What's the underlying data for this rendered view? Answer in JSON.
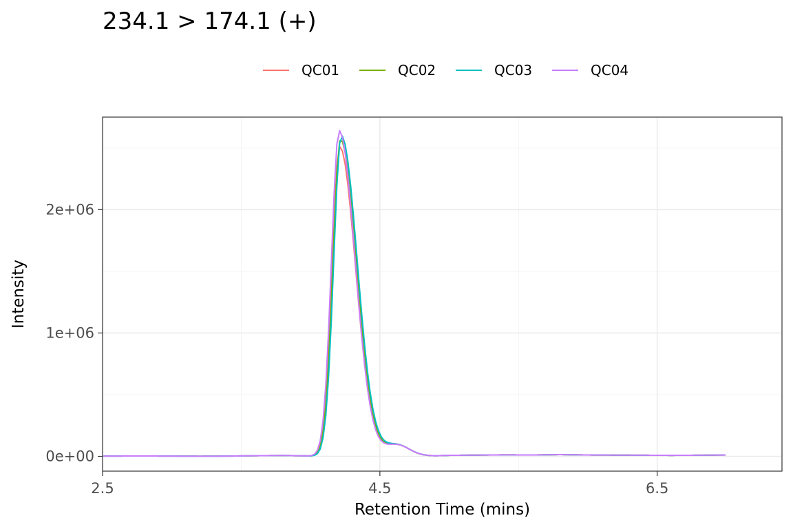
{
  "chart_data": {
    "type": "line",
    "title": "234.1 > 174.1 (+)",
    "xlabel": "Retention Time (mins)",
    "ylabel": "Intensity",
    "xlim": [
      2.5,
      7.4
    ],
    "ylim": [
      -120000,
      2750000
    ],
    "x_ticks": [
      2.5,
      4.5,
      6.5
    ],
    "x_tick_labels": [
      "2.5",
      "4.5",
      "6.5"
    ],
    "x_minor_ticks": [
      3.5,
      5.5
    ],
    "y_ticks": [
      0,
      1000000,
      2000000
    ],
    "y_tick_labels": [
      "0e+00",
      "1e+06",
      "2e+06"
    ],
    "y_minor_ticks": [
      500000,
      1500000,
      2500000
    ],
    "grid": true,
    "legend_position": "top",
    "series": [
      {
        "name": "QC01",
        "color": "#F8766D",
        "peak": 2510000
      },
      {
        "name": "QC02",
        "color": "#7CAE00",
        "peak": 2570000
      },
      {
        "name": "QC03",
        "color": "#00BFC4",
        "peak": 2600000
      },
      {
        "name": "QC04",
        "color": "#C77CFF",
        "peak": 2640000
      }
    ],
    "profile": {
      "x": [
        2.5,
        2.8,
        3.0,
        3.2,
        3.4,
        3.6,
        3.8,
        4.0,
        4.2,
        4.5,
        4.7,
        4.9,
        5.0,
        5.2,
        5.4,
        5.6,
        5.8,
        6.0,
        6.2,
        6.4,
        6.6,
        6.8,
        7.0,
        7.1,
        7.3,
        7.4
      ],
      "y": [
        2000,
        3000,
        2000,
        1000,
        2000,
        5000,
        7000,
        3000,
        2000,
        3000,
        5000,
        4000,
        8000,
        10000,
        12000,
        11000,
        14000,
        11000,
        10000,
        9000,
        8000,
        9000,
        11000,
        14000,
        12000,
        10000
      ]
    },
    "peak_shape": {
      "center": 4.21,
      "sigma_left": 0.055,
      "sigma_right": 0.115
    }
  }
}
